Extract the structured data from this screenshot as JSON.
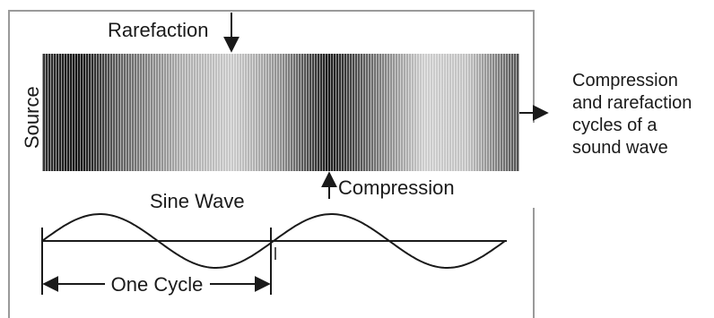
{
  "diagram": {
    "labels": {
      "rarefaction": "Rarefaction",
      "compression": "Compression",
      "source": "Source",
      "sine_wave": "Sine Wave",
      "one_cycle": "One Cycle"
    },
    "caption_lines": [
      "Compression",
      "and rarefaction",
      "cycles of a",
      "sound wave"
    ],
    "colors": {
      "frame": "#9a9a9a",
      "ink": "#1a1a1a",
      "band_dark": "#0c0c0c",
      "band_light": "#d2d2d2",
      "background": "#ffffff"
    },
    "wave_cycles_shown": 2
  }
}
